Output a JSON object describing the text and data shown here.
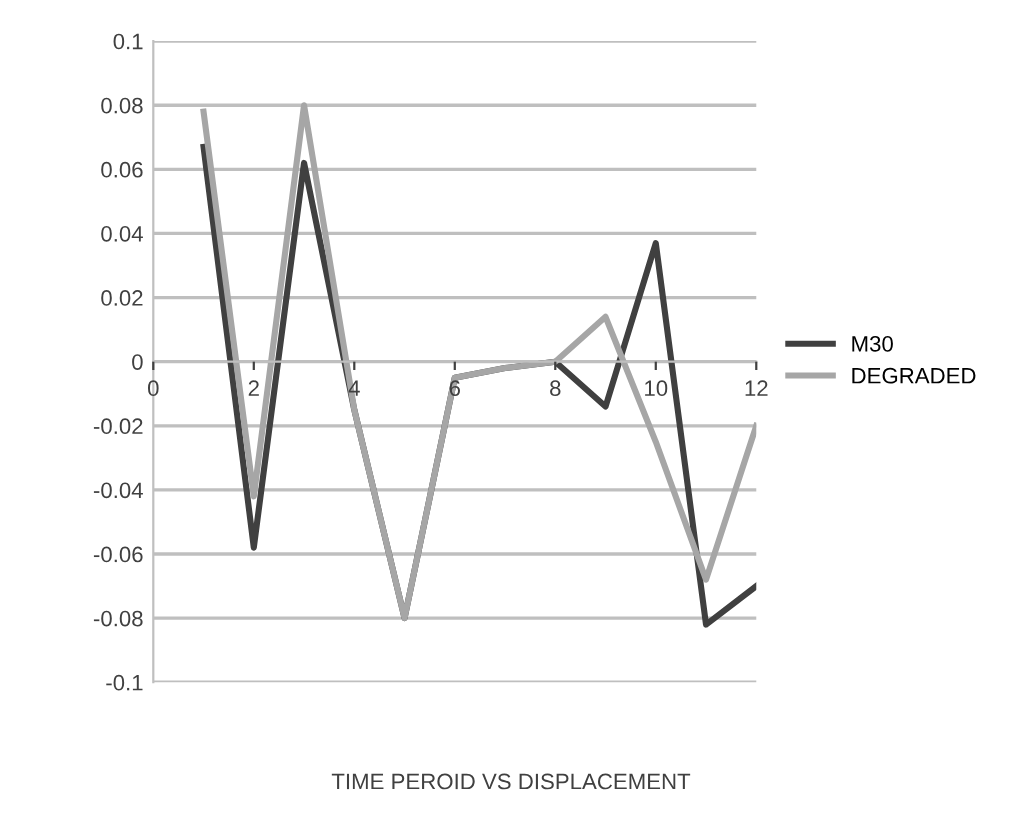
{
  "chart_data": {
    "type": "line",
    "xlabel": "TIME PEROID VS DISPLACEMENT",
    "x": [
      1,
      2,
      3,
      4,
      5,
      6,
      7,
      8,
      9,
      10,
      11,
      12
    ],
    "series": [
      {
        "name": "M30",
        "color": "#404040",
        "values": [
          0.067,
          -0.058,
          0.062,
          -0.015,
          -0.08,
          -0.005,
          -0.002,
          0.0,
          -0.014,
          0.037,
          -0.082,
          -0.07
        ]
      },
      {
        "name": "DEGRADED",
        "color": "#a6a6a6",
        "values": [
          0.078,
          -0.042,
          0.08,
          -0.015,
          -0.08,
          -0.005,
          -0.002,
          0.0,
          0.014,
          -0.025,
          -0.068,
          -0.02
        ]
      }
    ],
    "xlim": [
      0,
      12
    ],
    "xticks": [
      0,
      2,
      4,
      6,
      8,
      10,
      12
    ],
    "ylim": [
      -0.1,
      0.1
    ],
    "yticks": [
      -0.1,
      -0.08,
      -0.06,
      -0.04,
      -0.02,
      0,
      0.02,
      0.04,
      0.06,
      0.08,
      0.1
    ],
    "grid": "y",
    "legend": "right",
    "marker": "none",
    "line_style": "solid"
  }
}
